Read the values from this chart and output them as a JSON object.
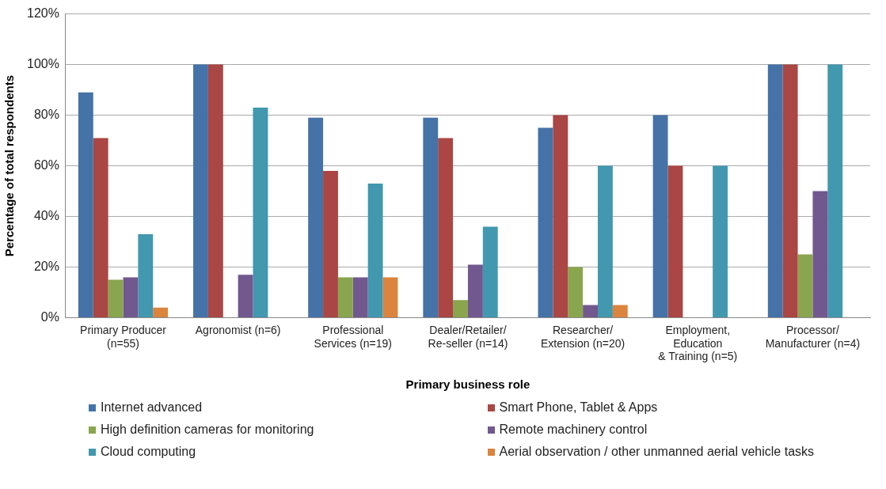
{
  "chart_data": {
    "type": "bar",
    "xlabel": "Primary business role",
    "ylabel": "Percentage of total respondents",
    "categories": [
      "Primary Producer\n(n=55)",
      "Agronomist (n=6)",
      "Professional\nServices (n=19)",
      "Dealer/Retailer/\nRe-seller (n=14)",
      "Researcher/\nExtension (n=20)",
      "Employment,\nEducation\n& Training (n=5)",
      "Processor/\nManufacturer (n=4)"
    ],
    "series": [
      {
        "name": "Internet advanced",
        "color": "#4572a7",
        "values": [
          89,
          100,
          79,
          79,
          75,
          80,
          100
        ]
      },
      {
        "name": "Smart Phone, Tablet & Apps",
        "color": "#aa4643",
        "values": [
          71,
          100,
          58,
          71,
          80,
          60,
          100
        ]
      },
      {
        "name": "High definition cameras for monitoring",
        "color": "#89a54e",
        "values": [
          15,
          0,
          16,
          7,
          20,
          0,
          25
        ]
      },
      {
        "name": "Remote machinery control",
        "color": "#71588f",
        "values": [
          16,
          17,
          16,
          21,
          5,
          0,
          50
        ]
      },
      {
        "name": "Cloud computing",
        "color": "#4198af",
        "values": [
          33,
          83,
          53,
          36,
          60,
          60,
          100
        ]
      },
      {
        "name": "Aerial observation / other unmanned aerial vehicle tasks",
        "color": "#db843d",
        "values": [
          4,
          0,
          16,
          0,
          5,
          0,
          0
        ]
      }
    ],
    "ylim": [
      0,
      120
    ],
    "yticks": [
      {
        "value": 0,
        "label": "0%"
      },
      {
        "value": 20,
        "label": "20%"
      },
      {
        "value": 40,
        "label": "40%"
      },
      {
        "value": 60,
        "label": "60%"
      },
      {
        "value": 80,
        "label": "80%"
      },
      {
        "value": 100,
        "label": "100%"
      },
      {
        "value": 120,
        "label": "120%"
      }
    ],
    "grid": "y",
    "legend": "bottom"
  }
}
